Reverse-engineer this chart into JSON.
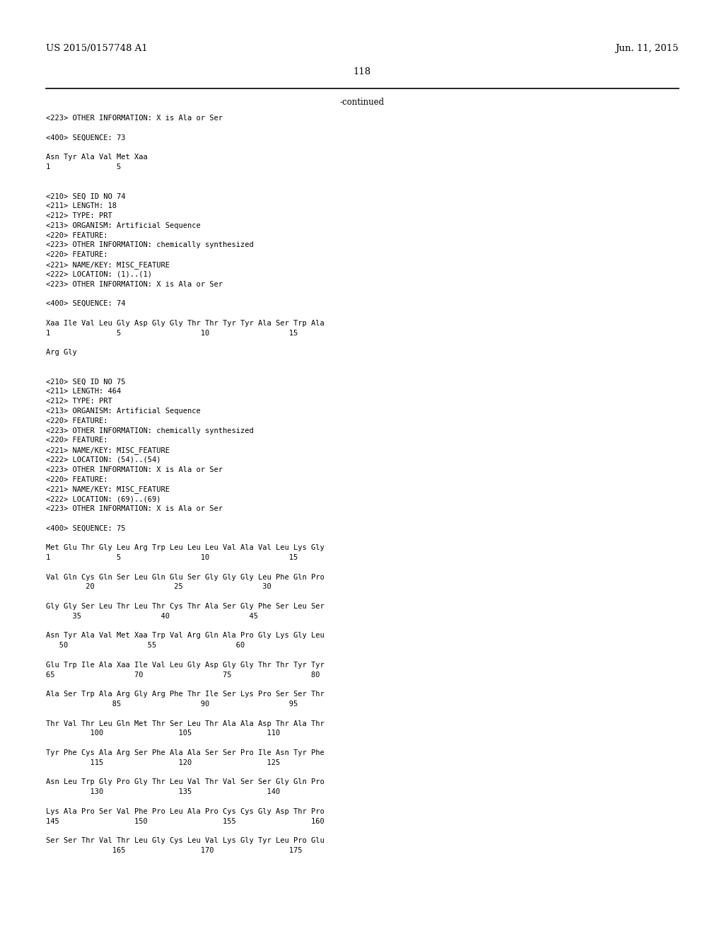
{
  "top_left": "US 2015/0157748 A1",
  "top_right": "Jun. 11, 2015",
  "page_number": "118",
  "continued": "-continued",
  "background_color": "#ffffff",
  "text_color": "#000000",
  "header_font_size": 9.5,
  "mono_font_size": 7.5,
  "lines": [
    "<223> OTHER INFORMATION: X is Ala or Ser",
    "",
    "<400> SEQUENCE: 73",
    "",
    "Asn Tyr Ala Val Met Xaa",
    "1               5",
    "",
    "",
    "<210> SEQ ID NO 74",
    "<211> LENGTH: 18",
    "<212> TYPE: PRT",
    "<213> ORGANISM: Artificial Sequence",
    "<220> FEATURE:",
    "<223> OTHER INFORMATION: chemically synthesized",
    "<220> FEATURE:",
    "<221> NAME/KEY: MISC_FEATURE",
    "<222> LOCATION: (1)..(1)",
    "<223> OTHER INFORMATION: X is Ala or Ser",
    "",
    "<400> SEQUENCE: 74",
    "",
    "Xaa Ile Val Leu Gly Asp Gly Gly Thr Thr Tyr Tyr Ala Ser Trp Ala",
    "1               5                  10                  15",
    "",
    "Arg Gly",
    "",
    "",
    "<210> SEQ ID NO 75",
    "<211> LENGTH: 464",
    "<212> TYPE: PRT",
    "<213> ORGANISM: Artificial Sequence",
    "<220> FEATURE:",
    "<223> OTHER INFORMATION: chemically synthesized",
    "<220> FEATURE:",
    "<221> NAME/KEY: MISC_FEATURE",
    "<222> LOCATION: (54)..(54)",
    "<223> OTHER INFORMATION: X is Ala or Ser",
    "<220> FEATURE:",
    "<221> NAME/KEY: MISC_FEATURE",
    "<222> LOCATION: (69)..(69)",
    "<223> OTHER INFORMATION: X is Ala or Ser",
    "",
    "<400> SEQUENCE: 75",
    "",
    "Met Glu Thr Gly Leu Arg Trp Leu Leu Leu Val Ala Val Leu Lys Gly",
    "1               5                  10                  15",
    "",
    "Val Gln Cys Gln Ser Leu Gln Glu Ser Gly Gly Gly Leu Phe Gln Pro",
    "         20                  25                  30",
    "",
    "Gly Gly Ser Leu Thr Leu Thr Cys Thr Ala Ser Gly Phe Ser Leu Ser",
    "      35                  40                  45",
    "",
    "Asn Tyr Ala Val Met Xaa Trp Val Arg Gln Ala Pro Gly Lys Gly Leu",
    "   50                  55                  60",
    "",
    "Glu Trp Ile Ala Xaa Ile Val Leu Gly Asp Gly Gly Thr Thr Tyr Tyr",
    "65                  70                  75                  80",
    "",
    "Ala Ser Trp Ala Arg Gly Arg Phe Thr Ile Ser Lys Pro Ser Ser Thr",
    "               85                  90                  95",
    "",
    "Thr Val Thr Leu Gln Met Thr Ser Leu Thr Ala Ala Asp Thr Ala Thr",
    "          100                 105                 110",
    "",
    "Tyr Phe Cys Ala Arg Ser Phe Ala Ala Ser Ser Pro Ile Asn Tyr Phe",
    "          115                 120                 125",
    "",
    "Asn Leu Trp Gly Pro Gly Thr Leu Val Thr Val Ser Ser Gly Gln Pro",
    "          130                 135                 140",
    "",
    "Lys Ala Pro Ser Val Phe Pro Leu Ala Pro Cys Cys Gly Asp Thr Pro",
    "145                 150                 155                 160",
    "",
    "Ser Ser Thr Val Thr Leu Gly Cys Leu Val Lys Gly Tyr Leu Pro Glu",
    "               165                 170                 175"
  ]
}
